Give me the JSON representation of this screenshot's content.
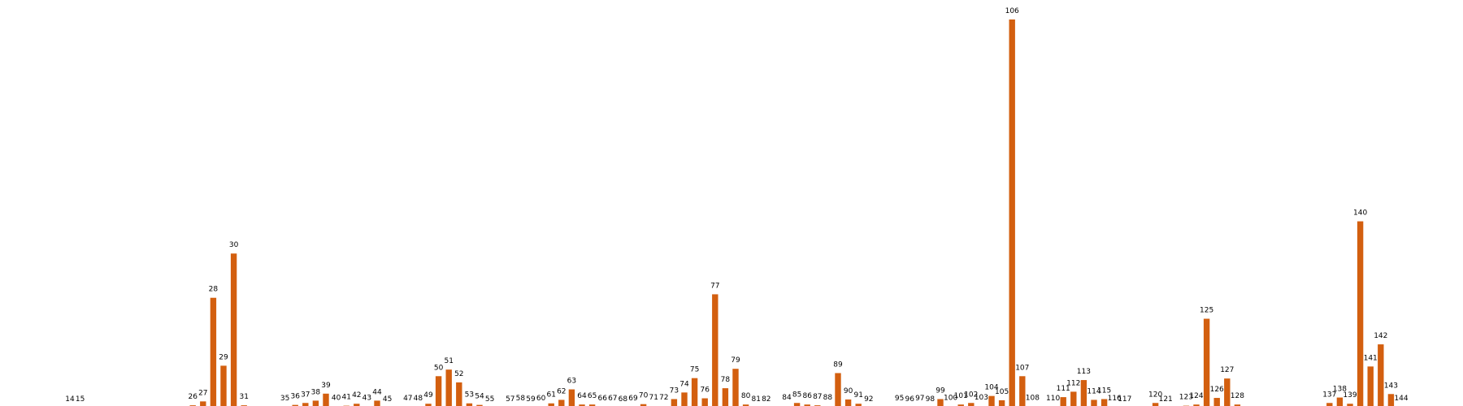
{
  "chart_data": {
    "type": "bar",
    "title": "",
    "xlabel": "",
    "ylabel": "",
    "grid": false,
    "legend": false,
    "bar_color": "#D35F0F",
    "ylim": [
      0,
      1
    ],
    "categories": [
      "14",
      "15",
      "26",
      "27",
      "28",
      "29",
      "30",
      "31",
      "35",
      "36",
      "37",
      "38",
      "39",
      "40",
      "41",
      "42",
      "43",
      "44",
      "45",
      "47",
      "48",
      "49",
      "50",
      "51",
      "52",
      "53",
      "54",
      "55",
      "57",
      "58",
      "59",
      "60",
      "61",
      "62",
      "63",
      "64",
      "65",
      "66",
      "67",
      "68",
      "69",
      "70",
      "71",
      "72",
      "73",
      "74",
      "75",
      "76",
      "77",
      "78",
      "79",
      "80",
      "81",
      "82",
      "84",
      "85",
      "86",
      "87",
      "88",
      "89",
      "90",
      "91",
      "92",
      "95",
      "96",
      "97",
      "98",
      "99",
      "100",
      "101",
      "102",
      "103",
      "104",
      "105",
      "106",
      "107",
      "108",
      "110",
      "111",
      "112",
      "113",
      "114",
      "115",
      "116",
      "117",
      "120",
      "121",
      "123",
      "124",
      "125",
      "126",
      "127",
      "128",
      "137",
      "138",
      "139",
      "140",
      "141",
      "142",
      "143",
      "144"
    ],
    "values": [
      0.0,
      0.0,
      0.006,
      0.016,
      0.283,
      0.108,
      0.397,
      0.006,
      0.002,
      0.007,
      0.012,
      0.018,
      0.036,
      0.003,
      0.005,
      0.01,
      0.003,
      0.018,
      0.0,
      0.002,
      0.002,
      0.01,
      0.081,
      0.098,
      0.065,
      0.011,
      0.007,
      0.0,
      0.0,
      0.002,
      0.0,
      0.002,
      0.011,
      0.02,
      0.047,
      0.008,
      0.008,
      0.002,
      0.002,
      0.0,
      0.002,
      0.009,
      0.004,
      0.004,
      0.022,
      0.039,
      0.076,
      0.024,
      0.292,
      0.05,
      0.1,
      0.008,
      0.0,
      0.0,
      0.004,
      0.012,
      0.008,
      0.006,
      0.004,
      0.089,
      0.021,
      0.01,
      0.0,
      0.002,
      0.0,
      0.002,
      0.0,
      0.022,
      0.003,
      0.008,
      0.012,
      0.004,
      0.03,
      0.019,
      1.0,
      0.081,
      0.003,
      0.002,
      0.027,
      0.041,
      0.071,
      0.02,
      0.022,
      0.002,
      0.0,
      0.012,
      0.0,
      0.005,
      0.008,
      0.229,
      0.025,
      0.075,
      0.008,
      0.012,
      0.026,
      0.01,
      0.48,
      0.106,
      0.163,
      0.035,
      0.002
    ]
  }
}
